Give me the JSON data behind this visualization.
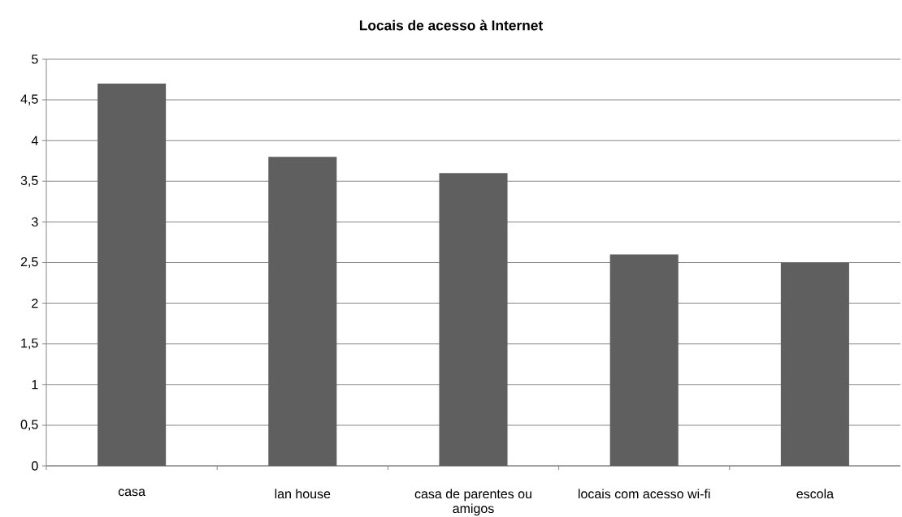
{
  "chart_data": {
    "type": "bar",
    "title": "Locais de acesso à Internet",
    "categories": [
      "casa",
      "lan house",
      "casa de parentes ou amigos",
      "locais com acesso wi-fi",
      "escola"
    ],
    "values": [
      4.7,
      3.8,
      3.6,
      2.6,
      2.5
    ],
    "color": "#5f5f5f",
    "ylim": [
      0,
      5
    ],
    "yticks": [
      0,
      {
        "value": 0.5,
        "label": "0,5"
      },
      1,
      {
        "value": 1.5,
        "label": "1,5"
      },
      2,
      {
        "value": 2.5,
        "label": "2,5"
      },
      3,
      {
        "value": 3.5,
        "label": "3,5"
      },
      4,
      {
        "value": 4.5,
        "label": "4,5"
      },
      5
    ],
    "grid": "y"
  }
}
